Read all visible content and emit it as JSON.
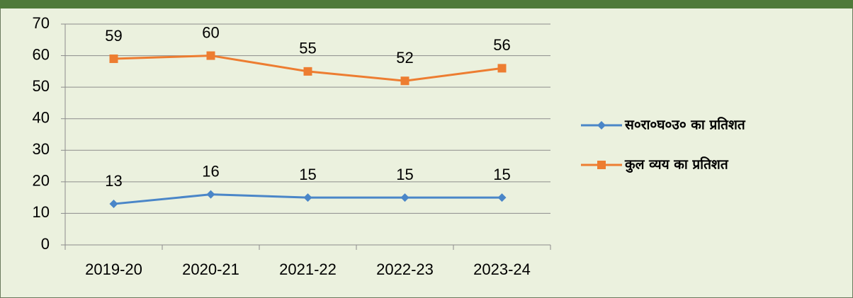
{
  "chart_data": {
    "type": "line",
    "categories": [
      "2019-20",
      "2020-21",
      "2021-22",
      "2022-23",
      "2023-24"
    ],
    "series": [
      {
        "name": "स०रा०घ०उ० का प्रतिशत",
        "color": "#4a86c8",
        "marker": "diamond",
        "values": [
          13,
          16,
          15,
          15,
          15
        ]
      },
      {
        "name": "कुल व्यय का प्रतिशत",
        "color": "#ed7d31",
        "marker": "square",
        "values": [
          59,
          60,
          55,
          52,
          56
        ]
      }
    ],
    "ylim": [
      0,
      70
    ],
    "yticks": [
      0,
      10,
      20,
      30,
      40,
      50,
      60,
      70
    ],
    "grid": true,
    "legend": "right"
  }
}
